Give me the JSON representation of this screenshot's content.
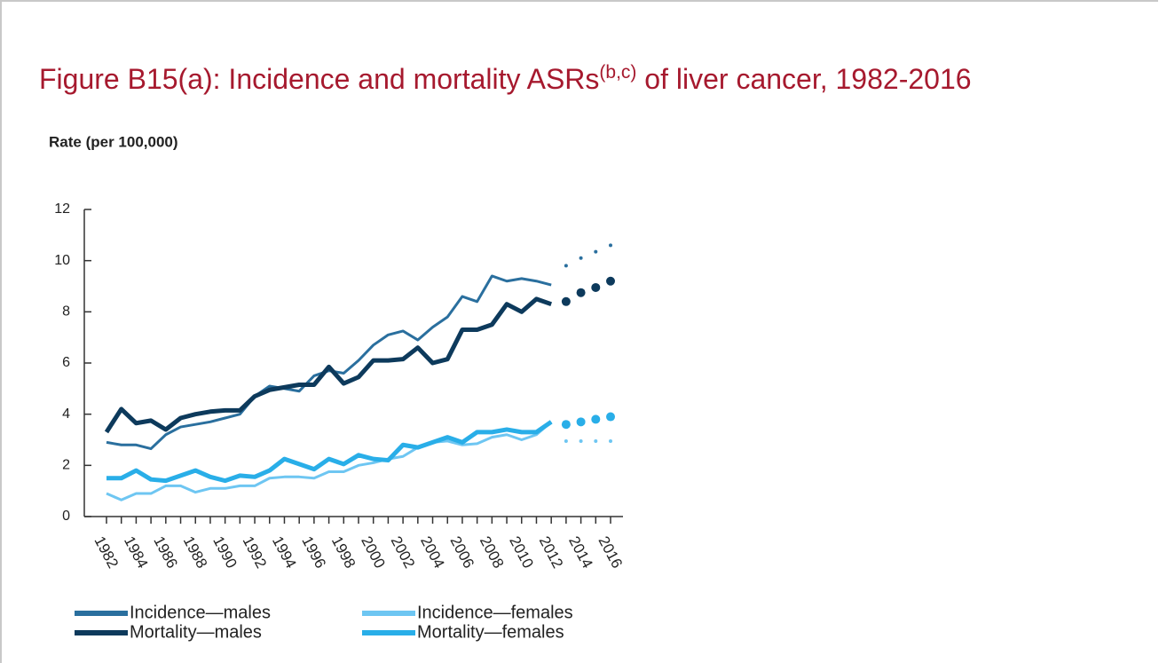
{
  "chart_data": {
    "type": "line",
    "title": "Figure B15(a): Incidence and mortality ASRs",
    "title_superscript": "(b,c)",
    "title_end": "of liver cancer, 1982-2016",
    "y_label": "Rate (per 100,000)",
    "x": [
      1982,
      1983,
      1984,
      1985,
      1986,
      1987,
      1988,
      1989,
      1990,
      1991,
      1992,
      1993,
      1994,
      1995,
      1996,
      1997,
      1998,
      1999,
      2000,
      2001,
      2002,
      2003,
      2004,
      2005,
      2006,
      2007,
      2008,
      2009,
      2010,
      2011,
      2012,
      2013,
      2014,
      2015,
      2016
    ],
    "xlim": [
      1982,
      2016
    ],
    "xticks": [
      1982,
      1984,
      1986,
      1988,
      1990,
      1992,
      1994,
      1996,
      1998,
      2000,
      2002,
      2004,
      2006,
      2008,
      2010,
      2012,
      2014,
      2016
    ],
    "ylim": [
      0,
      12
    ],
    "yticks": [
      0,
      2,
      4,
      6,
      8,
      10,
      12
    ],
    "series": [
      {
        "name": "Incidence—males",
        "color": "#2a6f9e",
        "values": [
          2.9,
          2.8,
          2.8,
          2.65,
          3.2,
          3.5,
          3.6,
          3.7,
          3.85,
          4.0,
          4.7,
          5.1,
          5.0,
          4.9,
          5.5,
          5.7,
          5.6,
          6.1,
          6.7,
          7.1,
          7.25,
          6.9,
          7.4,
          7.8,
          8.6,
          8.4,
          9.4,
          9.2,
          9.3,
          9.2,
          9.05,
          null,
          null,
          null,
          null
        ],
        "projected": [
          null,
          null,
          null,
          null,
          null,
          null,
          null,
          null,
          null,
          null,
          null,
          null,
          null,
          null,
          null,
          null,
          null,
          null,
          null,
          null,
          null,
          null,
          null,
          null,
          null,
          null,
          null,
          null,
          null,
          null,
          null,
          9.8,
          10.1,
          10.35,
          10.6
        ]
      },
      {
        "name": "Mortality—males",
        "color": "#0d3a5c",
        "values": [
          3.3,
          4.2,
          3.65,
          3.75,
          3.4,
          3.85,
          4.0,
          4.1,
          4.15,
          4.15,
          4.7,
          4.95,
          5.05,
          5.15,
          5.15,
          5.85,
          5.2,
          5.45,
          6.1,
          6.1,
          6.15,
          6.6,
          6.0,
          6.15,
          7.3,
          7.3,
          7.5,
          8.3,
          8.0,
          8.5,
          8.3,
          null,
          null,
          null,
          null
        ],
        "projected": [
          null,
          null,
          null,
          null,
          null,
          null,
          null,
          null,
          null,
          null,
          null,
          null,
          null,
          null,
          null,
          null,
          null,
          null,
          null,
          null,
          null,
          null,
          null,
          null,
          null,
          null,
          null,
          null,
          null,
          null,
          null,
          8.4,
          8.75,
          8.95,
          9.2
        ]
      },
      {
        "name": "Incidence—females",
        "color": "#6ec6f2",
        "values": [
          0.9,
          0.65,
          0.9,
          0.9,
          1.2,
          1.2,
          0.95,
          1.1,
          1.1,
          1.2,
          1.2,
          1.5,
          1.55,
          1.55,
          1.5,
          1.75,
          1.75,
          2.0,
          2.1,
          2.25,
          2.35,
          2.7,
          2.9,
          2.95,
          2.8,
          2.85,
          3.1,
          3.2,
          3.0,
          3.2,
          3.7,
          null,
          null,
          null,
          null
        ],
        "projected": [
          null,
          null,
          null,
          null,
          null,
          null,
          null,
          null,
          null,
          null,
          null,
          null,
          null,
          null,
          null,
          null,
          null,
          null,
          null,
          null,
          null,
          null,
          null,
          null,
          null,
          null,
          null,
          null,
          null,
          null,
          null,
          2.95,
          2.95,
          2.95,
          2.95
        ]
      },
      {
        "name": "Mortality—females",
        "color": "#29aee8",
        "values": [
          1.5,
          1.5,
          1.8,
          1.45,
          1.4,
          1.6,
          1.8,
          1.55,
          1.4,
          1.6,
          1.55,
          1.8,
          2.25,
          2.05,
          1.85,
          2.25,
          2.05,
          2.4,
          2.25,
          2.2,
          2.8,
          2.7,
          2.9,
          3.1,
          2.9,
          3.3,
          3.3,
          3.4,
          3.3,
          3.3,
          3.7,
          null,
          null,
          null,
          null
        ],
        "projected": [
          null,
          null,
          null,
          null,
          null,
          null,
          null,
          null,
          null,
          null,
          null,
          null,
          null,
          null,
          null,
          null,
          null,
          null,
          null,
          null,
          null,
          null,
          null,
          null,
          null,
          null,
          null,
          null,
          null,
          null,
          null,
          3.6,
          3.7,
          3.8,
          3.9
        ]
      }
    ]
  }
}
